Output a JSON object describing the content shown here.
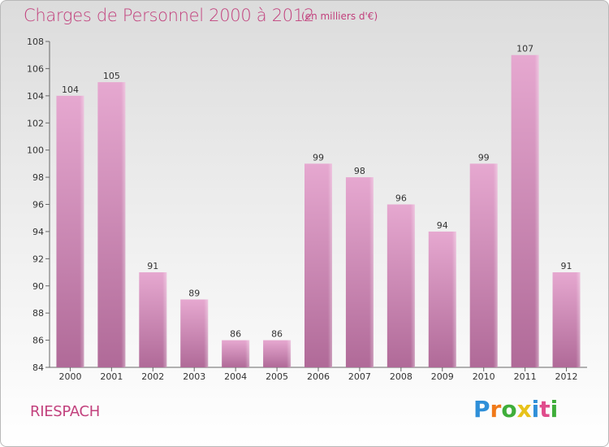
{
  "title": "Charges de Personnel 2000 à 2012",
  "subtitle": "(en milliers d'€)",
  "municipality": "RIESPACH",
  "logo": {
    "letters": [
      "P",
      "r",
      "o",
      "x",
      "i",
      "t",
      "i"
    ],
    "colors": [
      "#2f8fd8",
      "#f07a1a",
      "#3fae3a",
      "#e8c21a",
      "#2f8fd8",
      "#e04c8c",
      "#3fae3a"
    ]
  },
  "colors": {
    "bar_top": "#e6a8d0",
    "bar_bottom": "#b06a98",
    "text_accent": "#c2417d"
  },
  "chart_data": {
    "type": "bar",
    "categories": [
      "2000",
      "2001",
      "2002",
      "2003",
      "2004",
      "2005",
      "2006",
      "2007",
      "2008",
      "2009",
      "2010",
      "2011",
      "2012"
    ],
    "values": [
      104,
      105,
      91,
      89,
      86,
      86,
      99,
      98,
      96,
      94,
      99,
      107,
      91
    ],
    "title": "Charges de Personnel 2000 à 2012",
    "xlabel": "",
    "ylabel": "",
    "ylim": [
      84,
      108
    ],
    "yticks": [
      84,
      86,
      88,
      90,
      92,
      94,
      96,
      98,
      100,
      102,
      104,
      106,
      108
    ],
    "grid": false,
    "legend": "none"
  }
}
